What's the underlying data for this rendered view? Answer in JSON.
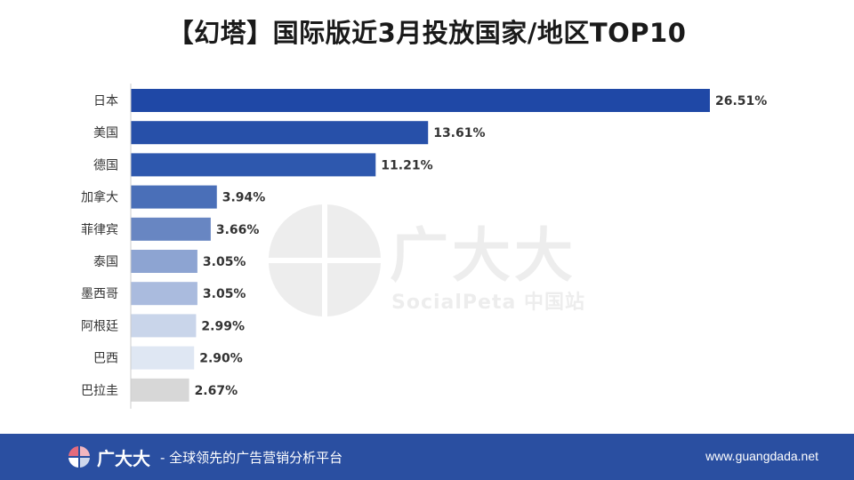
{
  "title": "【幻塔】国际版近3月投放国家/地区TOP10",
  "watermark": {
    "name": "广大大",
    "sub": "SocialPeta 中国站"
  },
  "footer": {
    "brand": "广大大",
    "slogan": "- 全球领先的广告营销分析平台",
    "url": "www.guangdada.net",
    "bg_color": "#2a4fa1"
  },
  "chart_data": {
    "type": "bar",
    "orientation": "horizontal",
    "title": "【幻塔】国际版近3月投放国家/地区TOP10",
    "categories": [
      "日本",
      "美国",
      "德国",
      "加拿大",
      "菲律宾",
      "泰国",
      "墨西哥",
      "阿根廷",
      "巴西",
      "巴拉圭"
    ],
    "values": [
      26.51,
      13.61,
      11.21,
      3.94,
      3.66,
      3.05,
      3.05,
      2.99,
      2.9,
      2.67
    ],
    "value_labels": [
      "26.51%",
      "13.61%",
      "11.21%",
      "3.94%",
      "3.66%",
      "3.05%",
      "3.05%",
      "2.99%",
      "2.90%",
      "2.67%"
    ],
    "unit": "%",
    "colors": [
      "#1f48a6",
      "#2750a9",
      "#2e58ae",
      "#4a6fb8",
      "#6886c2",
      "#8da4d2",
      "#aabbde",
      "#c9d5ea",
      "#dfe7f3",
      "#d7d7d7"
    ],
    "grid": false,
    "legend": "none"
  }
}
